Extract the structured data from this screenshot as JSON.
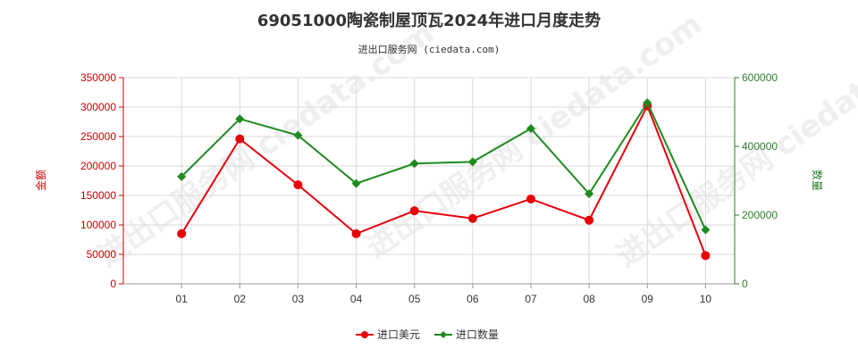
{
  "chart_data": {
    "type": "line",
    "title": "69051000陶瓷制屋顶瓦2024年进口月度走势",
    "subtitle": "进出口服务网 (ciedata.com)",
    "watermark": "进出口服务网 ciedata.com",
    "categories": [
      "01",
      "02",
      "03",
      "04",
      "05",
      "06",
      "07",
      "08",
      "09",
      "10"
    ],
    "y_left": {
      "label": "金额",
      "min": 0,
      "max": 350000,
      "ticks": [
        0,
        50000,
        100000,
        150000,
        200000,
        250000,
        300000,
        350000
      ]
    },
    "y_right": {
      "label": "数量",
      "min": 0,
      "max": 600000,
      "ticks": [
        0,
        200000,
        400000,
        600000
      ]
    },
    "grid": true,
    "legend_position": "bottom",
    "series": [
      {
        "name": "进口美元",
        "axis": "left",
        "color": "#e8000b",
        "marker": "circle",
        "values": [
          85000,
          246000,
          168000,
          85000,
          124000,
          111000,
          144000,
          108000,
          302000,
          48000
        ]
      },
      {
        "name": "进口数量",
        "axis": "right",
        "color": "#1f8a1f",
        "marker": "diamond",
        "values": [
          312000,
          480000,
          432000,
          292000,
          350000,
          355000,
          452000,
          262000,
          527000,
          157000
        ]
      }
    ]
  }
}
